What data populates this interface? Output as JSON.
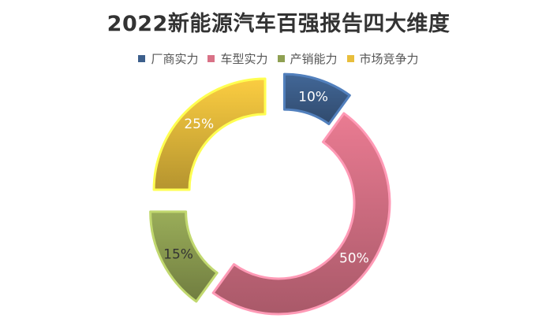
{
  "chart_data": {
    "type": "pie",
    "title": "2022新能源汽车百强报告四大维度",
    "legend_position": "top",
    "categories": [
      "厂商实力",
      "车型实力",
      "产销能力",
      "市场竞争力"
    ],
    "values": [
      10,
      50,
      15,
      25
    ],
    "labels": [
      "10%",
      "50%",
      "15%",
      "25%"
    ],
    "colors": [
      "#3d5f8c",
      "#d97287",
      "#8fa052",
      "#e8be3c"
    ]
  }
}
